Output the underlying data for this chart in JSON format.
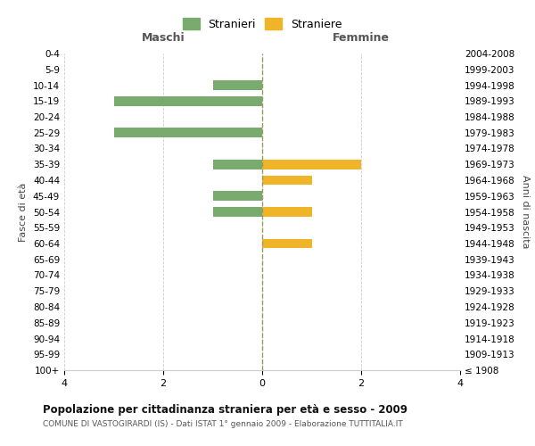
{
  "age_groups": [
    "100+",
    "95-99",
    "90-94",
    "85-89",
    "80-84",
    "75-79",
    "70-74",
    "65-69",
    "60-64",
    "55-59",
    "50-54",
    "45-49",
    "40-44",
    "35-39",
    "30-34",
    "25-29",
    "20-24",
    "15-19",
    "10-14",
    "5-9",
    "0-4"
  ],
  "birth_years": [
    "≤ 1908",
    "1909-1913",
    "1914-1918",
    "1919-1923",
    "1924-1928",
    "1929-1933",
    "1934-1938",
    "1939-1943",
    "1944-1948",
    "1949-1953",
    "1954-1958",
    "1959-1963",
    "1964-1968",
    "1969-1973",
    "1974-1978",
    "1979-1983",
    "1984-1988",
    "1989-1993",
    "1994-1998",
    "1999-2003",
    "2004-2008"
  ],
  "maschi": [
    0,
    0,
    0,
    0,
    0,
    0,
    0,
    0,
    0,
    0,
    1,
    1,
    0,
    1,
    0,
    3,
    0,
    3,
    1,
    0,
    0
  ],
  "femmine": [
    0,
    0,
    0,
    0,
    0,
    0,
    0,
    0,
    1,
    0,
    1,
    0,
    1,
    2,
    0,
    0,
    0,
    0,
    0,
    0,
    0
  ],
  "color_maschi": "#7aab6e",
  "color_femmine": "#f0b429",
  "title_main": "Popolazione per cittadinanza straniera per età e sesso - 2009",
  "title_sub": "COMUNE DI VASTOGIRARDI (IS) - Dati ISTAT 1° gennaio 2009 - Elaborazione TUTTITALIA.IT",
  "label_maschi": "Maschi",
  "label_femmine": "Femmine",
  "legend_stranieri": "Stranieri",
  "legend_straniere": "Straniere",
  "ylabel_left": "Fasce di età",
  "ylabel_right": "Anni di nascita",
  "xlim": 4,
  "background_color": "#ffffff",
  "grid_color": "#cccccc"
}
